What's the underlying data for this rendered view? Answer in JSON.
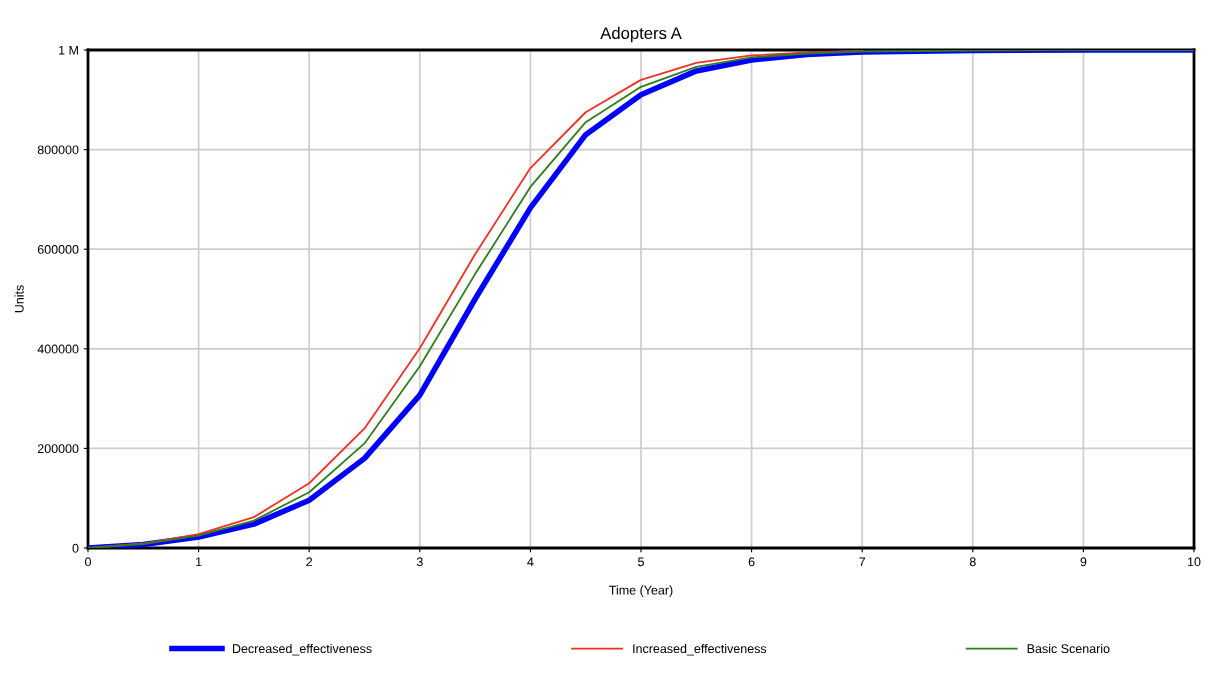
{
  "chart_data": {
    "type": "line",
    "title": "Adopters A",
    "xlabel": "Time (Year)",
    "ylabel": "Units",
    "x": [
      0,
      0.5,
      1,
      1.5,
      2,
      2.5,
      3,
      3.5,
      4,
      4.5,
      5,
      5.5,
      6,
      6.5,
      7,
      8,
      9,
      10
    ],
    "series": [
      {
        "name": "Decreased_effectiveness",
        "color": "#0000ff",
        "values": [
          0,
          7000,
          22000,
          48000,
          96000,
          180000,
          307000,
          500000,
          683000,
          830000,
          910000,
          958000,
          980000,
          991000,
          996000,
          999000,
          1000000,
          1000000
        ]
      },
      {
        "name": "Increased_effectiveness",
        "color": "#ee3224",
        "values": [
          0,
          9000,
          28000,
          62000,
          130000,
          240000,
          401000,
          590000,
          763000,
          875000,
          940000,
          974000,
          989000,
          995000,
          998000,
          null,
          null,
          null
        ]
      },
      {
        "name": "Basic Scenario",
        "color": "#2f7d1a",
        "values": [
          0,
          8000,
          25000,
          55000,
          112000,
          210000,
          365000,
          550000,
          725000,
          855000,
          926000,
          966000,
          985000,
          993000,
          997000,
          999000,
          1000000,
          1000000
        ]
      }
    ],
    "xlim": [
      0,
      10
    ],
    "xticks": [
      0,
      1,
      2,
      3,
      4,
      5,
      6,
      7,
      8,
      9,
      10
    ],
    "ylim": [
      0,
      1000000
    ],
    "yticks": [
      0,
      200000,
      400000,
      600000,
      800000,
      {
        "value": 1000000,
        "label": "1 M"
      }
    ],
    "grid": true,
    "legend": "bottom",
    "marker": "none",
    "line_style": "solid"
  }
}
